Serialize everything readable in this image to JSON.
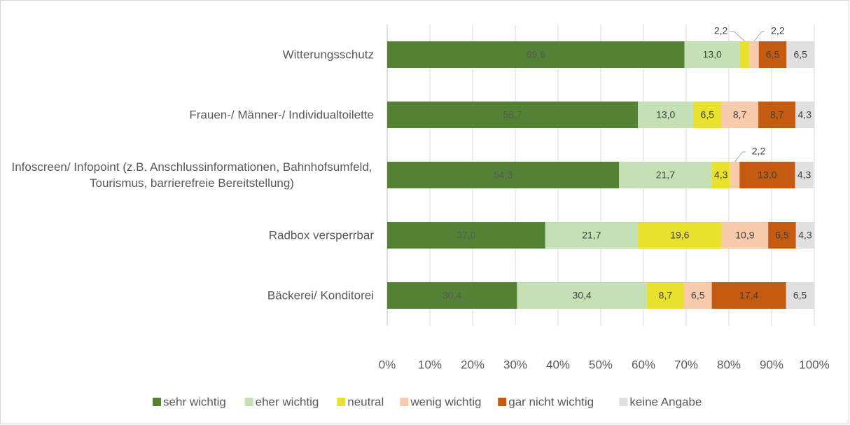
{
  "chart_data": {
    "type": "stacked-bar-horizontal",
    "categories": [
      "Witterungsschutz",
      "Frauen-/ Männer-/ Individualtoilette",
      "Infoscreen/ Infopoint (z.B. Anschlussinformationen, Bahnhofsumfeld, Tourismus, barrierefreie Bereitstellung)",
      "Radbox versperrbar",
      "Bäckerei/ Konditorei"
    ],
    "series": [
      {
        "name": "sehr wichtig",
        "color": "#548235",
        "values": [
          69.6,
          58.7,
          54.3,
          37.0,
          30.4
        ],
        "value_labels": [
          "69,6",
          "58,7",
          "54,3",
          "37,0",
          "30,4"
        ]
      },
      {
        "name": "eher wichtig",
        "color": "#c5e0b4",
        "values": [
          13.0,
          13.0,
          21.7,
          21.7,
          30.4
        ],
        "value_labels": [
          "13,0",
          "13,0",
          "21,7",
          "21,7",
          "30,4"
        ]
      },
      {
        "name": "neutral",
        "color": "#e8e22e",
        "values": [
          2.2,
          6.5,
          4.3,
          19.6,
          8.7
        ],
        "value_labels": [
          "2,2",
          "6,5",
          "4,3",
          "19,6",
          "8,7"
        ]
      },
      {
        "name": "wenig wichtig",
        "color": "#f8cbad",
        "values": [
          2.2,
          8.7,
          2.2,
          10.9,
          6.5
        ],
        "value_labels": [
          "2,2",
          "8,7",
          "2,2",
          "10,9",
          "6,5"
        ]
      },
      {
        "name": "gar nicht wichtig",
        "color": "#c55a11",
        "values": [
          6.5,
          8.7,
          13.0,
          6.5,
          17.4
        ],
        "value_labels": [
          "6,5",
          "8,7",
          "13,0",
          "6,5",
          "17,4"
        ]
      },
      {
        "name": "keine Angabe",
        "color": "#e0e0e0",
        "values": [
          6.5,
          4.3,
          4.3,
          4.3,
          6.5
        ],
        "value_labels": [
          "6,5",
          "4,3",
          "4,3",
          "4,3",
          "6,5"
        ]
      }
    ],
    "xlim": [
      0,
      100
    ],
    "xticks": [
      {
        "value": 0,
        "label": "0%"
      },
      {
        "value": 10,
        "label": "10%"
      },
      {
        "value": 20,
        "label": "20%"
      },
      {
        "value": 30,
        "label": "30%"
      },
      {
        "value": 40,
        "label": "40%"
      },
      {
        "value": 50,
        "label": "50%"
      },
      {
        "value": 60,
        "label": "60%"
      },
      {
        "value": 70,
        "label": "70%"
      },
      {
        "value": 80,
        "label": "80%"
      },
      {
        "value": 90,
        "label": "90%"
      },
      {
        "value": 100,
        "label": "100%"
      }
    ],
    "grid": true,
    "legend": "bottom"
  }
}
